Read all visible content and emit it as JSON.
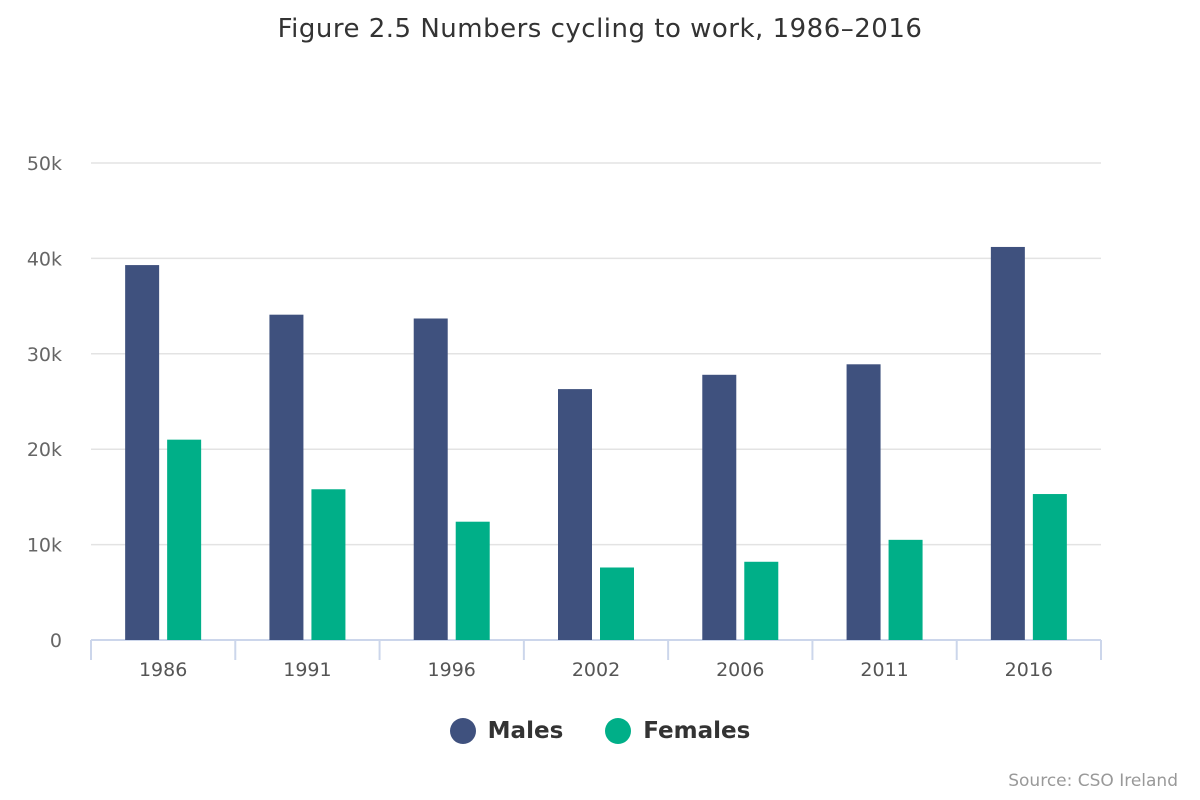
{
  "chart_data": {
    "type": "bar",
    "title": "Figure 2.5 Numbers cycling to work, 1986–2016",
    "categories": [
      "1986",
      "1991",
      "1996",
      "2002",
      "2006",
      "2011",
      "2016"
    ],
    "series": [
      {
        "name": "Males",
        "color": "#3f517e",
        "values": [
          39300,
          34100,
          33700,
          26300,
          27800,
          28900,
          41200
        ]
      },
      {
        "name": "Females",
        "color": "#00af88",
        "values": [
          21000,
          15800,
          12400,
          7600,
          8200,
          10500,
          15300
        ]
      }
    ],
    "yticks": [
      0,
      10000,
      20000,
      30000,
      40000,
      50000
    ],
    "ytick_labels": [
      "0",
      "10k",
      "20k",
      "30k",
      "40k",
      "50k"
    ],
    "ylim": [
      0,
      50000
    ],
    "grid": true,
    "legend_position": "bottom-center",
    "source": "Source: CSO Ireland"
  }
}
